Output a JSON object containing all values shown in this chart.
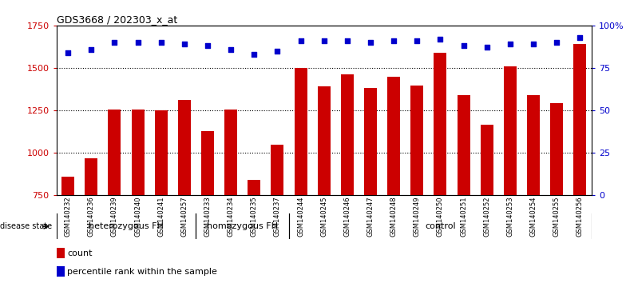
{
  "title": "GDS3668 / 202303_x_at",
  "categories": [
    "GSM140232",
    "GSM140236",
    "GSM140239",
    "GSM140240",
    "GSM140241",
    "GSM140257",
    "GSM140233",
    "GSM140234",
    "GSM140235",
    "GSM140237",
    "GSM140244",
    "GSM140245",
    "GSM140246",
    "GSM140247",
    "GSM140248",
    "GSM140249",
    "GSM140250",
    "GSM140251",
    "GSM140252",
    "GSM140253",
    "GSM140254",
    "GSM140255",
    "GSM140256"
  ],
  "bar_values": [
    860,
    970,
    1255,
    1255,
    1248,
    1310,
    1130,
    1255,
    840,
    1050,
    1500,
    1390,
    1460,
    1380,
    1450,
    1395,
    1590,
    1340,
    1165,
    1510,
    1340,
    1295,
    1640
  ],
  "percentile_values": [
    84,
    86,
    90,
    90,
    90,
    89,
    88,
    86,
    83,
    85,
    91,
    91,
    91,
    90,
    91,
    91,
    92,
    88,
    87,
    89,
    89,
    90,
    93
  ],
  "bar_color": "#cc0000",
  "dot_color": "#0000cc",
  "ylim_left": [
    750,
    1750
  ],
  "yticks_left": [
    750,
    1000,
    1250,
    1500,
    1750
  ],
  "ytick_labels_right": [
    "0",
    "25",
    "50",
    "75",
    "100%"
  ],
  "yticks_right": [
    0,
    25,
    50,
    75,
    100
  ],
  "group_labels": [
    "heterozygous FH",
    "homozygous FH",
    "control"
  ],
  "group_starts": [
    0,
    6,
    10
  ],
  "group_ends": [
    6,
    10,
    23
  ],
  "group_color": "#90ee90",
  "disease_state_label": "disease state",
  "legend_count_label": "count",
  "legend_percentile_label": "percentile rank within the sample",
  "tick_area_color": "#d3d3d3",
  "plot_bg_color": "#ffffff",
  "grid_yticks": [
    1000,
    1250,
    1500
  ]
}
